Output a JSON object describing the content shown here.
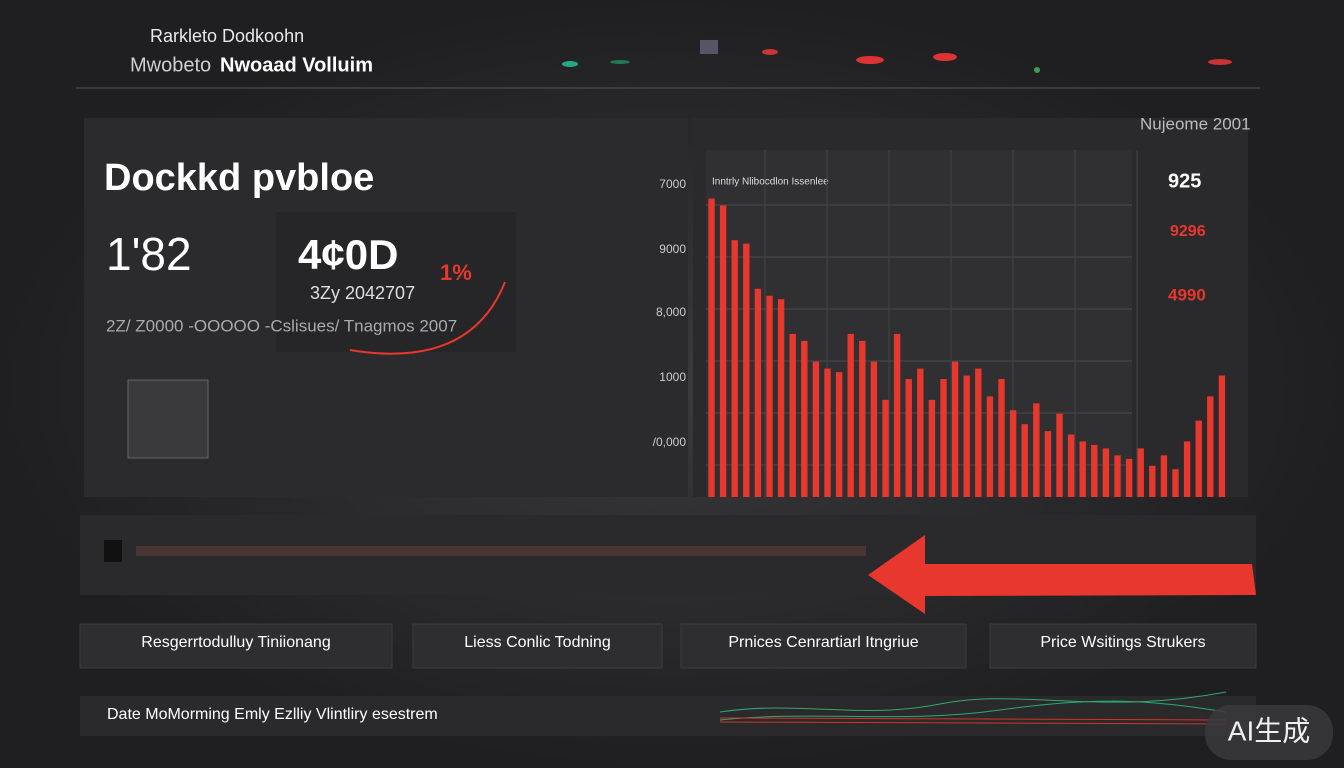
{
  "header": {
    "line1": "Rarkleto Dodkoohn",
    "line2_light": "Mwobeto",
    "line2_bold": "Nwoaad Volluim"
  },
  "panel": {
    "title": "Dockkd pvbloe",
    "metric1": "1'82",
    "metric2": "4¢0D",
    "metric2_note": "1%",
    "metric2_sub": "3Zy 2042707",
    "subtitle": "2Z/ Z0000 -OOOOO -Cslisues/ Tnagmos 2007"
  },
  "chart": {
    "type": "bar",
    "title": "Inntrly Nlibocdlon Issenlee",
    "axis_labels": [
      "7000",
      "9000",
      "8,000",
      "1000",
      "/0,000"
    ],
    "color": "#e8372c",
    "ylim": [
      0,
      100
    ],
    "values": [
      86,
      84,
      74,
      73,
      60,
      58,
      57,
      47,
      45,
      39,
      37,
      36,
      47,
      45,
      39,
      28,
      47,
      34,
      37,
      28,
      34,
      39,
      35,
      37,
      29,
      34,
      25,
      21,
      27,
      19,
      24,
      18,
      16,
      15,
      14,
      12,
      11,
      14,
      9,
      12,
      8,
      16,
      22,
      29,
      35
    ]
  },
  "side": {
    "label": "Nujeome 2001",
    "v1": "925",
    "v2": "9296",
    "v3": "4990"
  },
  "buttons": [
    "Resgerrtodulluy Tiniionang",
    "Liess Conlic Todning",
    "Prnices Cenrartiarl Itngriue",
    "Price Wsitings Strukers"
  ],
  "footer": {
    "text": "Date MoMorming Emly Ezlliy Vlintliry esestrem"
  },
  "watermark": "AI生成"
}
